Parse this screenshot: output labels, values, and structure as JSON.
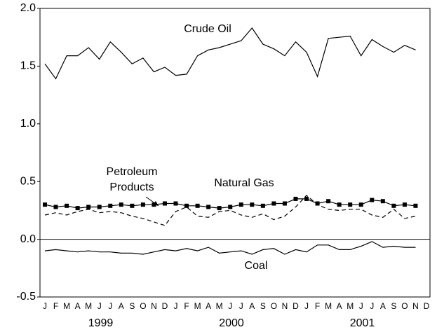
{
  "chart_data": {
    "type": "line",
    "categories": [
      "J",
      "F",
      "M",
      "A",
      "M",
      "J",
      "J",
      "A",
      "S",
      "O",
      "N",
      "D",
      "J",
      "F",
      "M",
      "A",
      "M",
      "J",
      "J",
      "A",
      "S",
      "O",
      "N",
      "D",
      "J",
      "F",
      "M",
      "A",
      "M",
      "J",
      "J",
      "A",
      "S",
      "O",
      "N",
      "D"
    ],
    "year_labels": [
      "1999",
      "2000",
      "2001"
    ],
    "ylim": [
      -0.5,
      2.0
    ],
    "yticks": [
      -0.5,
      {
        "value": 0,
        "label": "0.0"
      },
      0.5,
      {
        "value": 1,
        "label": "1.0"
      },
      1.5,
      {
        "value": 2,
        "label": "2.0"
      }
    ],
    "series": [
      {
        "name": "Crude Oil",
        "color": "#000000",
        "style": "solid",
        "values": [
          1.52,
          1.39,
          1.59,
          1.59,
          1.66,
          1.56,
          1.71,
          1.62,
          1.52,
          1.57,
          1.45,
          1.49,
          1.42,
          1.43,
          1.59,
          1.64,
          1.66,
          1.69,
          1.72,
          1.83,
          1.69,
          1.65,
          1.59,
          1.71,
          1.62,
          1.41,
          1.74,
          1.75,
          1.76,
          1.59,
          1.73,
          1.67,
          1.62,
          1.68,
          1.64,
          null
        ]
      },
      {
        "name": "Petroleum Products",
        "color": "#000000",
        "style": "dashed",
        "values": [
          0.21,
          0.23,
          0.21,
          0.24,
          0.26,
          0.23,
          0.24,
          0.23,
          0.2,
          0.18,
          0.15,
          0.12,
          0.24,
          0.28,
          0.2,
          0.19,
          0.24,
          0.25,
          0.21,
          0.19,
          0.22,
          0.17,
          0.2,
          0.28,
          0.38,
          0.3,
          0.26,
          0.25,
          0.26,
          0.26,
          0.21,
          0.19,
          0.26,
          0.18,
          0.2,
          null
        ]
      },
      {
        "name": "Natural Gas",
        "color": "#000000",
        "style": "markers",
        "values": [
          0.3,
          0.28,
          0.29,
          0.27,
          0.28,
          0.28,
          0.29,
          0.3,
          0.29,
          0.3,
          0.3,
          0.31,
          0.31,
          0.29,
          0.29,
          0.28,
          0.27,
          0.28,
          0.3,
          0.3,
          0.29,
          0.31,
          0.31,
          0.35,
          0.35,
          0.31,
          0.33,
          0.3,
          0.3,
          0.3,
          0.34,
          0.33,
          0.29,
          0.3,
          0.29,
          null
        ]
      },
      {
        "name": "Coal",
        "color": "#000000",
        "style": "solid",
        "values": [
          -0.1,
          -0.09,
          -0.1,
          -0.11,
          -0.1,
          -0.11,
          -0.11,
          -0.12,
          -0.12,
          -0.13,
          -0.11,
          -0.09,
          -0.1,
          -0.08,
          -0.1,
          -0.07,
          -0.12,
          -0.11,
          -0.1,
          -0.13,
          -0.09,
          -0.08,
          -0.13,
          -0.09,
          -0.11,
          -0.05,
          -0.05,
          -0.09,
          -0.09,
          -0.06,
          -0.02,
          -0.07,
          -0.06,
          -0.07,
          -0.07,
          null
        ]
      }
    ]
  }
}
